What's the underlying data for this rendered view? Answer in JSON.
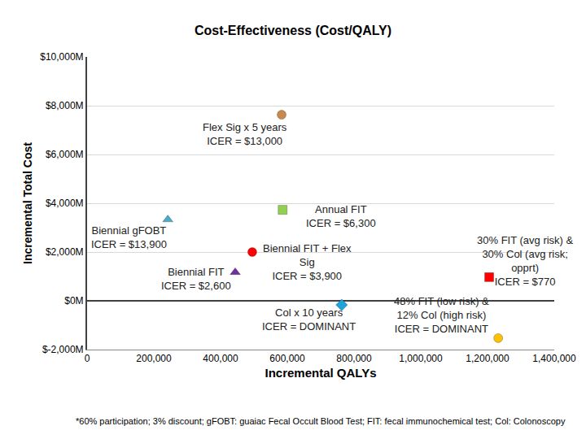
{
  "chart_data": {
    "type": "scatter",
    "title": "Cost-Effectiveness (Cost/QALY)",
    "x_label": "Incremental QALYs",
    "y_label": "Incremental Total Cost",
    "footnote": "*60% participation; 3% discount; gFOBT: guaiac Fecal Occult Blood Test; FIT: fecal immunochemical test; Col: Colonoscopy",
    "xlim": [
      0,
      1400000
    ],
    "xticks": [
      0,
      {
        "value": 200000,
        "label": "200,000"
      },
      {
        "value": 400000,
        "label": "400,000"
      },
      {
        "value": 600000,
        "label": "600,000"
      },
      {
        "value": 800000,
        "label": "800,000"
      },
      {
        "value": 1000000,
        "label": "1,000,000"
      },
      {
        "value": 1200000,
        "label": "1,200,000"
      },
      {
        "value": 1400000,
        "label": "1,400,000"
      }
    ],
    "ylim": [
      -2000,
      10000
    ],
    "yticks": [
      {
        "value": -2000,
        "label": "$-2,000M"
      },
      {
        "value": 0,
        "label": "$0M"
      },
      {
        "value": 2000,
        "label": "$2,000M"
      },
      {
        "value": 4000,
        "label": "$4,000M"
      },
      {
        "value": 6000,
        "label": "$6,000M"
      },
      {
        "value": 8000,
        "label": "$8,000M"
      },
      {
        "value": 10000,
        "label": "$10,000M"
      }
    ],
    "grid": true,
    "series": [
      {
        "name": "Biennial gFOBT",
        "annotation": [
          "Biennial gFOBT",
          "ICER = $13,900"
        ],
        "color": "#4bacc6",
        "marker": "triangle",
        "x": [
          242000
        ],
        "values": [
          3330
        ]
      },
      {
        "name": "Flex Sig x 5 years",
        "annotation": [
          "Flex Sig x 5 years",
          "ICER = $13,000"
        ],
        "color": "#c98a4b",
        "marker": "circle",
        "x": [
          583000
        ],
        "values": [
          7630
        ]
      },
      {
        "name": "Annual FIT",
        "annotation": [
          "Annual FIT",
          "ICER = $6,300"
        ],
        "color": "#92d050",
        "marker": "square",
        "x": [
          586000
        ],
        "values": [
          3730
        ]
      },
      {
        "name": "Biennial FIT + Flex Sig",
        "annotation": [
          "Biennial FIT + Flex",
          "Sig",
          "ICER = $3,900"
        ],
        "color": "#ff0000",
        "marker": "circle",
        "x": [
          495000
        ],
        "values": [
          2000
        ]
      },
      {
        "name": "Biennial FIT",
        "annotation": [
          "Biennial FIT",
          "ICER = $2,600"
        ],
        "color": "#7030a0",
        "marker": "triangle",
        "x": [
          444000
        ],
        "values": [
          1170
        ]
      },
      {
        "name": "Col x 10 years",
        "annotation": [
          "Col x 10 years",
          "ICER = DOMINANT"
        ],
        "color": "#1fa3dc",
        "marker": "diamond",
        "x": [
          763000
        ],
        "values": [
          -170
        ]
      },
      {
        "name": "30% FIT (avg risk) & 30% Col (avg risk; opprt)",
        "annotation": [
          "30% FIT (avg risk) &",
          "30% Col (avg risk;",
          "opprt)",
          "ICER = $770"
        ],
        "color": "#ff0000",
        "marker": "square",
        "x": [
          1205000
        ],
        "values": [
          970
        ]
      },
      {
        "name": "48% FIT (low risk) & 12% Col (high risk)",
        "annotation": [
          "48% FIT (low risk) &",
          "12% Col (high risk)",
          "ICER = DOMINANT"
        ],
        "color": "#ffc000",
        "marker": "circle",
        "x": [
          1232000
        ],
        "values": [
          -1530
        ]
      }
    ]
  }
}
